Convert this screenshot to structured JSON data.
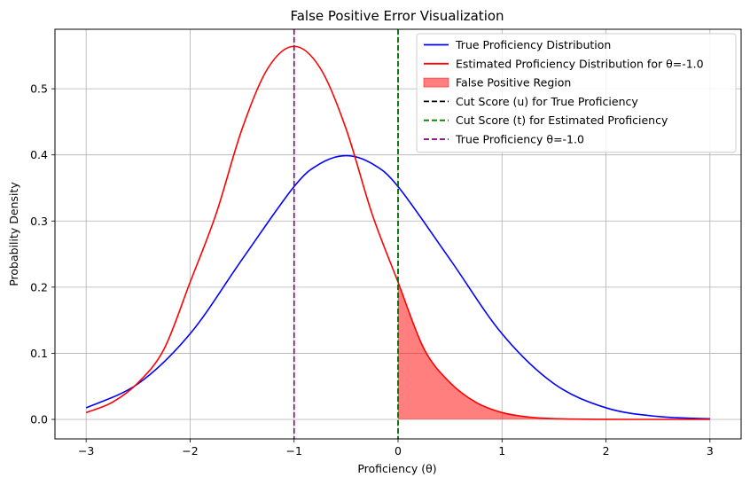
{
  "chart_data": {
    "type": "line",
    "title": "False Positive Error Visualization",
    "xlabel": "Proficiency (θ)",
    "ylabel": "Probability Density",
    "xlim": [
      -3.3,
      3.3
    ],
    "ylim": [
      -0.0295,
      0.59
    ],
    "xticks": [
      -3,
      -2,
      -1,
      0,
      1,
      2,
      3
    ],
    "yticks": [
      0.0,
      0.1,
      0.2,
      0.3,
      0.4,
      0.5
    ],
    "xtick_labels": [
      "−3",
      "−2",
      "−1",
      "0",
      "1",
      "2",
      "3"
    ],
    "ytick_labels": [
      "0.0",
      "0.1",
      "0.2",
      "0.3",
      "0.4",
      "0.5"
    ],
    "grid": true,
    "legend_position": "top-right",
    "series": [
      {
        "name": "True Proficiency Distribution",
        "kind": "line",
        "color": "#0000ff",
        "x": [
          -3.0,
          -2.5,
          -2.0,
          -1.5,
          -1.0,
          -0.75,
          -0.5,
          -0.25,
          0.0,
          0.5,
          1.0,
          1.5,
          2.0,
          2.5,
          3.0
        ],
        "y": [
          0.0175,
          0.054,
          0.1295,
          0.242,
          0.3521,
          0.3867,
          0.3989,
          0.3867,
          0.3521,
          0.242,
          0.1295,
          0.054,
          0.0175,
          0.0044,
          0.0009
        ]
      },
      {
        "name": "Estimated Proficiency Distribution for θ=-1.0",
        "kind": "line",
        "color": "#ff0000",
        "x": [
          -3.0,
          -2.75,
          -2.5,
          -2.25,
          -2.0,
          -1.75,
          -1.5,
          -1.25,
          -1.0,
          -0.75,
          -0.5,
          -0.25,
          0.0,
          0.25,
          0.5,
          0.75,
          1.0,
          1.25,
          1.5,
          2.0,
          2.5,
          3.0
        ],
        "y": [
          0.0103,
          0.0257,
          0.0556,
          0.1066,
          0.2075,
          0.3108,
          0.4394,
          0.5315,
          0.5642,
          0.5315,
          0.4394,
          0.3108,
          0.2075,
          0.1066,
          0.0556,
          0.0257,
          0.0103,
          0.0036,
          0.0011,
          0.0001,
          0.0,
          0.0
        ]
      },
      {
        "name": "False Positive Region",
        "kind": "fill",
        "color": "#ff0000",
        "opacity": 0.5,
        "x_from": 0.0,
        "x_to": 3.0,
        "follows": "Estimated Proficiency Distribution for θ=-1.0"
      },
      {
        "name": "Cut Score (u) for True Proficiency",
        "kind": "vline",
        "color": "#000000",
        "x": 0.0
      },
      {
        "name": "Cut Score (t) for Estimated Proficiency",
        "kind": "vline",
        "color": "#008000",
        "x": 0.0
      },
      {
        "name": "True Proficiency θ=-1.0",
        "kind": "vline",
        "color": "#800080",
        "x": -1.0
      }
    ]
  }
}
